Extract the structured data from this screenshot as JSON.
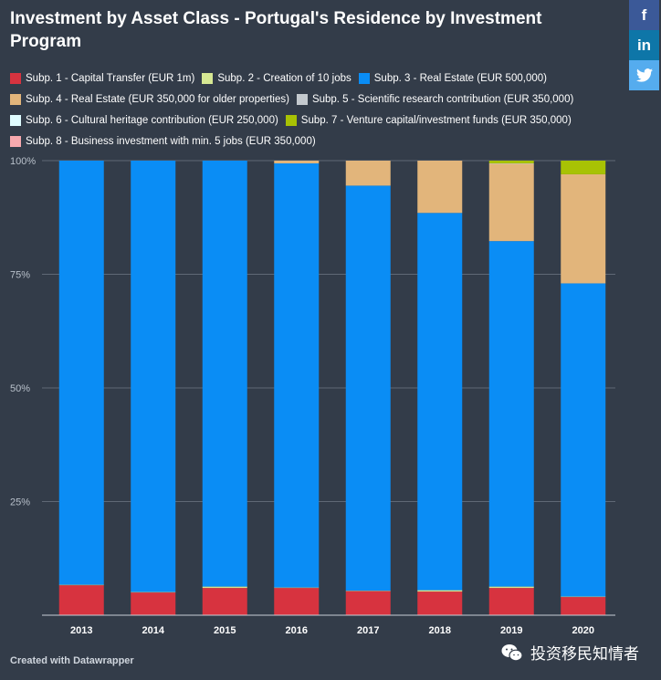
{
  "page": {
    "title": "Investment by Asset Class - Portugal's Residence by Investment Program",
    "credit": "Created with Datawrapper",
    "watermark": "投资移民知情者"
  },
  "share": {
    "facebook": "f",
    "linkedin": "in",
    "twitter": "t"
  },
  "chart_data": {
    "type": "bar",
    "stacked": true,
    "percent": true,
    "title": "Investment by Asset Class - Portugal's Residence by Investment Program",
    "categories": [
      "2013",
      "2014",
      "2015",
      "2016",
      "2017",
      "2018",
      "2019",
      "2020"
    ],
    "ylim": [
      0,
      100
    ],
    "yticks": [
      {
        "value": 25,
        "label": "25%"
      },
      {
        "value": 50,
        "label": "50%"
      },
      {
        "value": 75,
        "label": "75%"
      },
      {
        "value": 100,
        "label": "100%"
      }
    ],
    "series": [
      {
        "name": "Subp. 1 - Capital Transfer (EUR 1m)",
        "color": "#d7333f",
        "values": [
          6.6,
          5.0,
          6.0,
          6.0,
          5.3,
          5.2,
          6.0,
          4.0
        ]
      },
      {
        "name": "Subp. 2 - Creation of 10 jobs",
        "color": "#d6e893",
        "values": [
          0.1,
          0.1,
          0.3,
          0.1,
          0.1,
          0.3,
          0.3,
          0.1
        ]
      },
      {
        "name": "Subp. 3 - Real Estate (EUR 500,000)",
        "color": "#0a8df5",
        "values": [
          93.3,
          94.9,
          93.7,
          93.3,
          89.1,
          83.0,
          76.0,
          68.9
        ]
      },
      {
        "name": "Subp. 4 - Real Estate (EUR 350,000 for older properties)",
        "color": "#e2b57b",
        "values": [
          0.0,
          0.0,
          0.0,
          0.6,
          5.5,
          11.5,
          17.0,
          24.0
        ]
      },
      {
        "name": "Subp. 5 - Scientific research contribution (EUR 350,000)",
        "color": "#c4c9ce",
        "values": [
          0.0,
          0.0,
          0.0,
          0.0,
          0.0,
          0.0,
          0.1,
          0.0
        ]
      },
      {
        "name": "Subp. 6 - Cultural heritage contribution (EUR 250,000)",
        "color": "#dffcff",
        "values": [
          0.0,
          0.0,
          0.0,
          0.0,
          0.0,
          0.0,
          0.0,
          0.0
        ]
      },
      {
        "name": "Subp. 7 - Venture capital/investment funds (EUR 350,000)",
        "color": "#a8c204",
        "values": [
          0.0,
          0.0,
          0.0,
          0.0,
          0.0,
          0.0,
          0.6,
          3.0
        ]
      },
      {
        "name": "Subp. 8 - Business investment with min. 5 jobs (EUR 350,000)",
        "color": "#f7a9ae",
        "values": [
          0.0,
          0.0,
          0.0,
          0.0,
          0.0,
          0.0,
          0.0,
          0.0
        ]
      }
    ]
  }
}
